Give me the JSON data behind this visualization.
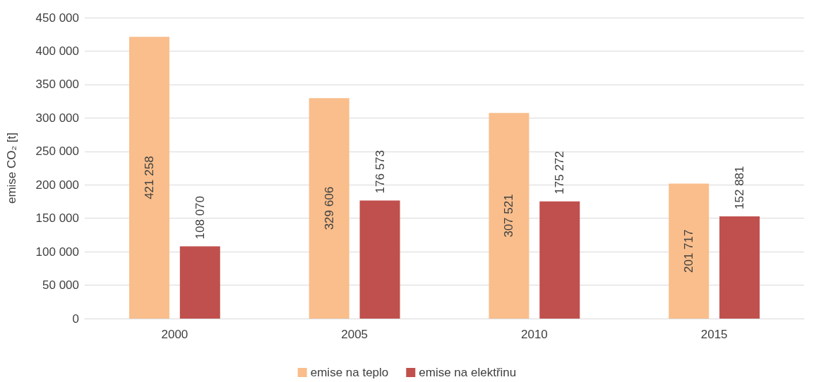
{
  "chart_data": {
    "type": "bar",
    "ylabel": "emise CO₂ [t]",
    "categories": [
      "2000",
      "2005",
      "2010",
      "2015"
    ],
    "series": [
      {
        "name": "emise na teplo",
        "color": "#f9be8c",
        "values": [
          421258,
          329606,
          307521,
          201717
        ],
        "value_labels": [
          "421 258",
          "329 606",
          "307 521",
          "201 717"
        ]
      },
      {
        "name": "emise na elektřinu",
        "color": "#c0504d",
        "values": [
          108070,
          176573,
          175272,
          152881
        ],
        "value_labels": [
          "108 070",
          "176 573",
          "175 272",
          "152 881"
        ]
      }
    ],
    "ylim": [
      0,
      450000
    ],
    "yticks": [
      {
        "value": 0,
        "label": "0"
      },
      {
        "value": 50000,
        "label": "50 000"
      },
      {
        "value": 100000,
        "label": "100 000"
      },
      {
        "value": 150000,
        "label": "150 000"
      },
      {
        "value": 200000,
        "label": "200 000"
      },
      {
        "value": 250000,
        "label": "250 000"
      },
      {
        "value": 300000,
        "label": "300 000"
      },
      {
        "value": 350000,
        "label": "350 000"
      },
      {
        "value": 400000,
        "label": "400 000"
      },
      {
        "value": 450000,
        "label": "450 000"
      }
    ],
    "grid": "y",
    "legend": "bottom"
  }
}
